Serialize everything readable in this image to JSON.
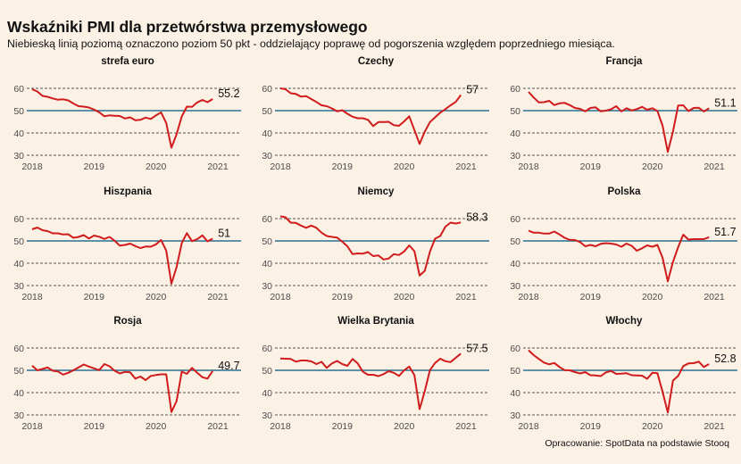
{
  "title": "Wskaźniki PMI dla przetwórstwa przemysłowego",
  "subtitle": "Niebieską linią poziomą oznaczono poziom 50 pkt - oddzielający poprawę od pogorszenia względem poprzedniego miesiąca.",
  "source": "Opracowanie: SpotData na podstawie Stooq",
  "colors": {
    "background": "#fbf1e5",
    "series": "#d01c1c",
    "reference_line": "#2a7094",
    "grid": "#555555"
  },
  "chart_data": [
    {
      "type": "line",
      "title": "strefa euro",
      "x_start": "2018-01",
      "x_ticks": [
        "2018",
        "2019",
        "2020",
        "2021"
      ],
      "ylim": [
        30,
        62
      ],
      "y_ticks": [
        30,
        40,
        50,
        60
      ],
      "reference_line": 50,
      "grid": true,
      "end_label": "55.2",
      "values": [
        59.6,
        58.6,
        56.6,
        56.2,
        55.5,
        54.9,
        55.1,
        54.6,
        53.2,
        52.0,
        51.8,
        51.4,
        50.5,
        49.3,
        47.5,
        47.9,
        47.7,
        47.6,
        46.5,
        47.0,
        45.7,
        45.9,
        46.9,
        46.3,
        47.9,
        49.2,
        44.5,
        33.4,
        39.4,
        47.4,
        51.8,
        51.7,
        53.7,
        54.8,
        53.8,
        55.2
      ]
    },
    {
      "type": "line",
      "title": "Czechy",
      "x_start": "2018-01",
      "x_ticks": [
        "2018",
        "2019",
        "2020",
        "2021"
      ],
      "ylim": [
        30,
        62
      ],
      "y_ticks": [
        30,
        40,
        50,
        60
      ],
      "reference_line": 50,
      "grid": true,
      "end_label": "57",
      "values": [
        60.0,
        59.6,
        57.8,
        57.5,
        56.3,
        56.5,
        55.2,
        53.9,
        52.4,
        52.0,
        51.0,
        49.7,
        50.2,
        48.6,
        47.3,
        46.6,
        46.6,
        45.9,
        43.1,
        44.9,
        44.9,
        45.0,
        43.5,
        43.2,
        45.2,
        47.5,
        41.3,
        35.1,
        40.6,
        44.9,
        47.0,
        49.1,
        50.7,
        52.4,
        53.9,
        57.0
      ]
    },
    {
      "type": "line",
      "title": "Francja",
      "x_start": "2018-01",
      "x_ticks": [
        "2018",
        "2019",
        "2020",
        "2021"
      ],
      "ylim": [
        30,
        62
      ],
      "y_ticks": [
        30,
        40,
        50,
        60
      ],
      "reference_line": 50,
      "grid": true,
      "end_label": "51.1",
      "values": [
        58.4,
        55.9,
        53.7,
        53.8,
        54.4,
        52.5,
        53.3,
        53.5,
        52.5,
        51.2,
        50.8,
        49.7,
        51.2,
        51.5,
        49.7,
        50.0,
        50.6,
        52.0,
        49.7,
        51.1,
        50.1,
        50.7,
        51.7,
        50.4,
        51.1,
        49.8,
        43.2,
        31.5,
        40.6,
        52.3,
        52.4,
        49.8,
        51.2,
        51.3,
        49.6,
        51.1
      ]
    },
    {
      "type": "line",
      "title": "Hiszpania",
      "x_start": "2018-01",
      "x_ticks": [
        "2018",
        "2019",
        "2020",
        "2021"
      ],
      "ylim": [
        30,
        62
      ],
      "y_ticks": [
        30,
        40,
        50,
        60
      ],
      "reference_line": 50,
      "grid": true,
      "end_label": "51",
      "values": [
        55.2,
        56.0,
        54.8,
        54.4,
        53.4,
        53.4,
        52.9,
        53.0,
        51.4,
        51.8,
        52.6,
        51.1,
        52.4,
        51.9,
        50.9,
        51.8,
        50.1,
        47.9,
        48.2,
        48.8,
        47.7,
        46.8,
        47.5,
        47.4,
        48.5,
        50.4,
        45.7,
        30.8,
        38.3,
        49.0,
        53.5,
        49.9,
        50.8,
        52.5,
        49.8,
        51.0
      ]
    },
    {
      "type": "line",
      "title": "Niemcy",
      "x_start": "2018-01",
      "x_ticks": [
        "2018",
        "2019",
        "2020",
        "2021"
      ],
      "ylim": [
        30,
        62
      ],
      "y_ticks": [
        30,
        40,
        50,
        60
      ],
      "reference_line": 50,
      "grid": true,
      "end_label": "58.3",
      "values": [
        61.1,
        60.6,
        58.2,
        58.1,
        56.9,
        55.9,
        56.9,
        55.9,
        53.7,
        52.2,
        51.8,
        51.5,
        49.7,
        47.6,
        44.1,
        44.4,
        44.3,
        45.0,
        43.2,
        43.5,
        41.7,
        42.1,
        44.1,
        43.7,
        45.3,
        48.0,
        45.4,
        34.5,
        36.6,
        45.2,
        51.0,
        52.2,
        56.4,
        58.2,
        57.8,
        58.3
      ]
    },
    {
      "type": "line",
      "title": "Polska",
      "x_start": "2018-01",
      "x_ticks": [
        "2018",
        "2019",
        "2020",
        "2021"
      ],
      "ylim": [
        30,
        62
      ],
      "y_ticks": [
        30,
        40,
        50,
        60
      ],
      "reference_line": 50,
      "grid": true,
      "end_label": "51.7",
      "values": [
        54.6,
        53.7,
        53.7,
        53.3,
        53.3,
        54.2,
        52.9,
        51.4,
        50.5,
        50.4,
        49.5,
        47.6,
        48.2,
        47.6,
        48.7,
        49.0,
        48.8,
        48.4,
        47.4,
        48.8,
        47.8,
        45.6,
        46.7,
        48.0,
        47.4,
        48.2,
        42.4,
        31.9,
        40.6,
        47.2,
        52.8,
        50.6,
        50.8,
        50.8,
        50.8,
        51.7
      ]
    },
    {
      "type": "line",
      "title": "Rosja",
      "x_start": "2018-01",
      "x_ticks": [
        "2018",
        "2019",
        "2020",
        "2021"
      ],
      "ylim": [
        30,
        62
      ],
      "y_ticks": [
        30,
        40,
        50,
        60
      ],
      "reference_line": 50,
      "grid": true,
      "end_label": "49.7",
      "values": [
        52.1,
        50.0,
        50.6,
        51.3,
        49.8,
        49.5,
        48.1,
        48.9,
        50.0,
        51.3,
        52.6,
        51.7,
        50.9,
        50.1,
        52.8,
        51.8,
        49.8,
        48.6,
        49.3,
        49.1,
        46.3,
        47.2,
        45.6,
        47.5,
        47.9,
        48.2,
        48.2,
        31.3,
        36.2,
        49.4,
        48.4,
        51.1,
        48.9,
        46.9,
        46.3,
        49.7
      ]
    },
    {
      "type": "line",
      "title": "Wielka Brytania",
      "x_start": "2018-01",
      "x_ticks": [
        "2018",
        "2019",
        "2020",
        "2021"
      ],
      "ylim": [
        30,
        62
      ],
      "y_ticks": [
        30,
        40,
        50,
        60
      ],
      "reference_line": 50,
      "grid": true,
      "end_label": "57.5",
      "values": [
        55.3,
        55.2,
        55.1,
        53.9,
        54.4,
        54.4,
        54.0,
        52.8,
        53.8,
        51.1,
        53.1,
        54.2,
        52.8,
        52.0,
        55.1,
        53.1,
        49.4,
        48.0,
        48.0,
        47.4,
        48.3,
        49.6,
        48.9,
        47.5,
        50.0,
        51.7,
        47.8,
        32.6,
        40.7,
        50.1,
        53.3,
        55.2,
        54.1,
        53.7,
        55.6,
        57.5
      ]
    },
    {
      "type": "line",
      "title": "Włochy",
      "x_start": "2018-01",
      "x_ticks": [
        "2018",
        "2019",
        "2020",
        "2021"
      ],
      "ylim": [
        30,
        62
      ],
      "y_ticks": [
        30,
        40,
        50,
        60
      ],
      "reference_line": 50,
      "grid": true,
      "end_label": "52.8",
      "values": [
        59.0,
        56.8,
        55.1,
        53.5,
        52.7,
        53.3,
        51.5,
        50.1,
        50.0,
        49.2,
        48.6,
        49.2,
        47.8,
        47.7,
        47.4,
        49.1,
        49.7,
        48.4,
        48.5,
        48.7,
        47.8,
        47.7,
        47.6,
        46.2,
        48.9,
        48.7,
        40.3,
        31.1,
        45.4,
        47.5,
        51.9,
        53.1,
        53.2,
        53.9,
        51.5,
        52.8
      ]
    }
  ]
}
